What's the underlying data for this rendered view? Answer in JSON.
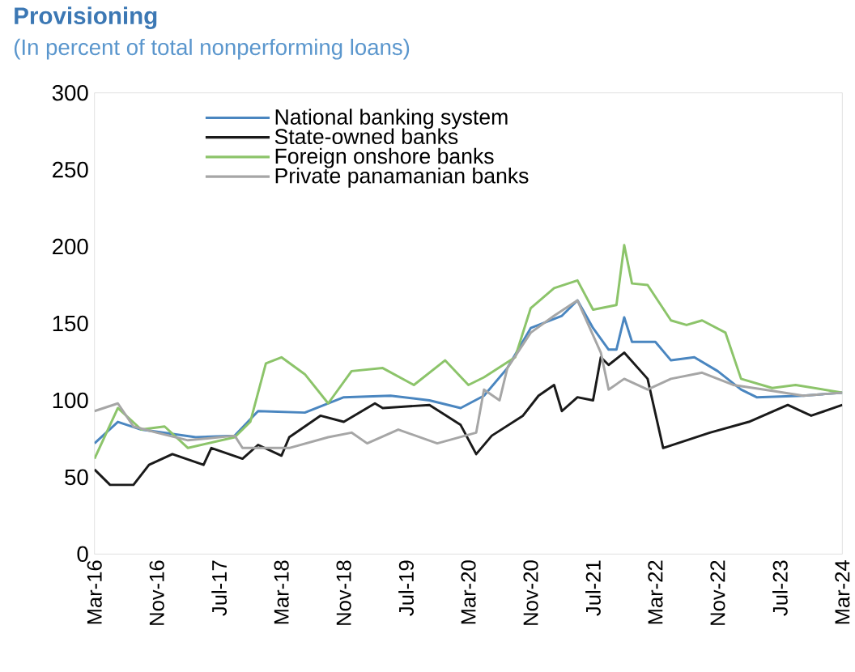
{
  "chart_data": {
    "type": "line",
    "title": "Provisioning",
    "subtitle": "(In percent of total nonperforming loans)",
    "xlim": [
      "2016-03",
      "2024-03"
    ],
    "xticks": [
      {
        "value": "2016-03",
        "label": "Mar-16"
      },
      {
        "value": "2016-11",
        "label": "Nov-16"
      },
      {
        "value": "2017-07",
        "label": "Jul-17"
      },
      {
        "value": "2018-03",
        "label": "Mar-18"
      },
      {
        "value": "2018-11",
        "label": "Nov-18"
      },
      {
        "value": "2019-07",
        "label": "Jul-19"
      },
      {
        "value": "2020-03",
        "label": "Mar-20"
      },
      {
        "value": "2020-11",
        "label": "Nov-20"
      },
      {
        "value": "2021-07",
        "label": "Jul-21"
      },
      {
        "value": "2022-03",
        "label": "Mar-22"
      },
      {
        "value": "2022-11",
        "label": "Nov-22"
      },
      {
        "value": "2023-07",
        "label": "Jul-23"
      },
      {
        "value": "2024-03",
        "label": "Mar-24"
      }
    ],
    "ylim": [
      0,
      300
    ],
    "yticks": [
      0,
      50,
      100,
      150,
      200,
      250,
      300
    ],
    "legend": "top",
    "grid": false,
    "series": [
      {
        "name": "National banking system",
        "color": "#4a86c0",
        "x": [
          "2016-03",
          "2016-06",
          "2016-09",
          "2017-04",
          "2017-09",
          "2017-12",
          "2018-06",
          "2018-11",
          "2019-05",
          "2019-10",
          "2020-02",
          "2020-05",
          "2020-08",
          "2020-11",
          "2021-03",
          "2021-05",
          "2021-07",
          "2021-09",
          "2021-10",
          "2021-11",
          "2021-12",
          "2022-03",
          "2022-05",
          "2022-08",
          "2022-11",
          "2023-02",
          "2023-04",
          "2023-10",
          "2024-03"
        ],
        "values": [
          72,
          86,
          81,
          76,
          77,
          93,
          92,
          102,
          103,
          100,
          95,
          103,
          121,
          147,
          155,
          165,
          147,
          133,
          133,
          154,
          138,
          138,
          126,
          128,
          119,
          107,
          102,
          103,
          105
        ]
      },
      {
        "name": "State-owned banks",
        "color": "#1a1a1a",
        "x": [
          "2016-03",
          "2016-05",
          "2016-08",
          "2016-10",
          "2017-01",
          "2017-05",
          "2017-06",
          "2017-10",
          "2017-12",
          "2018-03",
          "2018-04",
          "2018-08",
          "2018-11",
          "2019-03",
          "2019-04",
          "2019-10",
          "2020-02",
          "2020-04",
          "2020-06",
          "2020-10",
          "2020-12",
          "2021-02",
          "2021-03",
          "2021-05",
          "2021-07",
          "2021-08",
          "2021-09",
          "2021-11",
          "2022-02",
          "2022-04",
          "2022-10",
          "2023-03",
          "2023-08",
          "2023-11",
          "2024-03"
        ],
        "values": [
          55,
          45,
          45,
          58,
          65,
          58,
          69,
          62,
          71,
          64,
          76,
          90,
          86,
          98,
          95,
          97,
          84,
          65,
          77,
          90,
          103,
          110,
          93,
          102,
          100,
          128,
          123,
          131,
          114,
          69,
          79,
          86,
          97,
          90,
          97
        ]
      },
      {
        "name": "Foreign onshore banks",
        "color": "#8cc46a",
        "x": [
          "2016-03",
          "2016-06",
          "2016-09",
          "2016-12",
          "2017-03",
          "2017-09",
          "2017-11",
          "2018-01",
          "2018-03",
          "2018-06",
          "2018-09",
          "2018-12",
          "2019-04",
          "2019-08",
          "2019-12",
          "2020-03",
          "2020-05",
          "2020-09",
          "2020-11",
          "2021-02",
          "2021-05",
          "2021-07",
          "2021-10",
          "2021-11",
          "2021-12",
          "2022-02",
          "2022-05",
          "2022-07",
          "2022-09",
          "2022-12",
          "2023-02",
          "2023-06",
          "2023-09",
          "2024-03"
        ],
        "values": [
          62,
          95,
          81,
          83,
          69,
          76,
          86,
          124,
          128,
          117,
          98,
          119,
          121,
          110,
          126,
          110,
          115,
          128,
          160,
          173,
          178,
          159,
          162,
          201,
          176,
          175,
          152,
          149,
          152,
          144,
          114,
          108,
          110,
          105
        ]
      },
      {
        "name": "Private panamanian banks",
        "color": "#a6a6a6",
        "x": [
          "2016-03",
          "2016-06",
          "2016-08",
          "2016-11",
          "2017-03",
          "2017-09",
          "2017-10",
          "2018-04",
          "2018-09",
          "2018-12",
          "2019-02",
          "2019-06",
          "2019-11",
          "2020-04",
          "2020-05",
          "2020-07",
          "2020-08",
          "2020-11",
          "2021-02",
          "2021-05",
          "2021-08",
          "2021-09",
          "2021-11",
          "2022-02",
          "2022-05",
          "2022-09",
          "2023-01",
          "2023-05",
          "2023-10",
          "2024-03"
        ],
        "values": [
          93,
          98,
          83,
          79,
          74,
          77,
          69,
          69,
          76,
          79,
          72,
          81,
          72,
          79,
          107,
          100,
          121,
          144,
          155,
          165,
          131,
          107,
          114,
          107,
          114,
          118,
          110,
          107,
          103,
          105
        ]
      }
    ]
  }
}
